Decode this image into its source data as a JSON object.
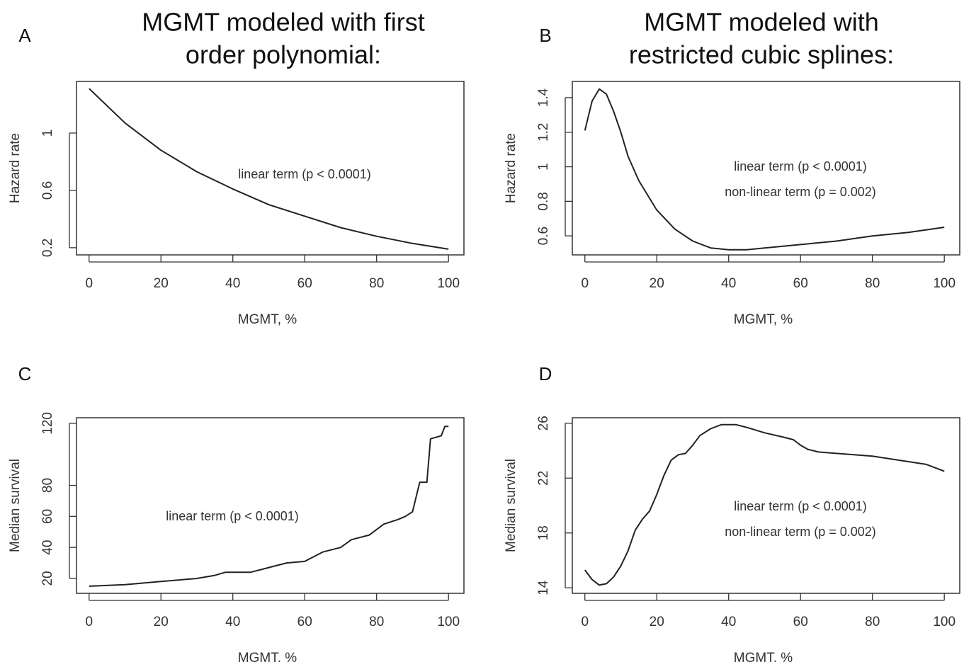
{
  "chart_data": [
    {
      "type": "line",
      "panel": "A",
      "title": [
        "MGMT modeled with first",
        "order polynomial:"
      ],
      "x_label": "MGMT, %",
      "y_label": "Hazard rate",
      "annotations": [
        "linear term (p < 0.0001)"
      ],
      "color": "#222",
      "x": [
        0,
        10,
        20,
        30,
        40,
        50,
        60,
        70,
        80,
        90,
        100
      ],
      "values": [
        1.31,
        1.07,
        0.88,
        0.73,
        0.61,
        0.5,
        0.42,
        0.34,
        0.28,
        0.23,
        0.19
      ],
      "xlim": [
        -3.5,
        104.3
      ],
      "xticks": [
        0,
        20,
        40,
        60,
        80,
        100
      ],
      "ylim": [
        0.15,
        1.36
      ],
      "yticks": [
        0.2,
        0.6,
        1.0
      ]
    },
    {
      "type": "line",
      "panel": "B",
      "title": [
        "MGMT modeled with",
        "restricted cubic splines:"
      ],
      "x_label": "MGMT, %",
      "y_label": "Hazard rate",
      "annotations": [
        "linear term (p < 0.0001)",
        "non-linear term (p = 0.002)"
      ],
      "color": "#222",
      "x": [
        0,
        2,
        4,
        6,
        8,
        10,
        12,
        15,
        20,
        25,
        30,
        35,
        40,
        45,
        50,
        60,
        70,
        80,
        90,
        100
      ],
      "values": [
        1.21,
        1.38,
        1.45,
        1.42,
        1.32,
        1.2,
        1.06,
        0.92,
        0.75,
        0.64,
        0.57,
        0.53,
        0.52,
        0.52,
        0.53,
        0.55,
        0.57,
        0.6,
        0.62,
        0.65
      ],
      "xlim": [
        -3.5,
        104.3
      ],
      "xticks": [
        0,
        20,
        40,
        60,
        80,
        100
      ],
      "ylim": [
        0.49,
        1.494
      ],
      "yticks": [
        0.6,
        0.8,
        1.0,
        1.2,
        1.4
      ]
    },
    {
      "type": "line",
      "panel": "C",
      "x_label": "MGMT, %",
      "y_label": "Median survival",
      "annotations": [
        "linear term (p < 0.0001)"
      ],
      "color": "#222",
      "x": [
        0,
        10,
        20,
        30,
        35,
        38,
        45,
        50,
        55,
        60,
        65,
        70,
        73,
        78,
        82,
        86,
        88,
        90,
        92,
        94,
        95,
        98,
        99,
        100
      ],
      "values": [
        15,
        16,
        18,
        20,
        22,
        24,
        24,
        27,
        30,
        31,
        37,
        40,
        45,
        48,
        55,
        58,
        60,
        63,
        82,
        82,
        110,
        112,
        118,
        118
      ],
      "xlim": [
        -3.5,
        104.3
      ],
      "xticks": [
        0,
        20,
        40,
        60,
        80,
        100
      ],
      "ylim": [
        10.4,
        123.6
      ],
      "yticks": [
        20,
        40,
        60,
        80,
        120
      ]
    },
    {
      "type": "line",
      "panel": "D",
      "x_label": "MGMT, %",
      "y_label": "Median survival",
      "annotations": [
        "linear term (p < 0.0001)",
        "non-linear term (p = 0.002)"
      ],
      "color": "#222",
      "x": [
        0,
        2,
        4,
        6,
        8,
        10,
        12,
        14,
        16,
        18,
        20,
        22,
        24,
        26,
        28,
        30,
        32,
        35,
        38,
        42,
        45,
        50,
        55,
        58,
        60,
        62,
        65,
        70,
        80,
        90,
        95,
        100
      ],
      "values": [
        15.3,
        14.6,
        14.2,
        14.3,
        14.8,
        15.6,
        16.7,
        18.2,
        19.0,
        19.6,
        20.8,
        22.2,
        23.3,
        23.7,
        23.8,
        24.4,
        25.1,
        25.6,
        25.9,
        25.9,
        25.7,
        25.3,
        25.0,
        24.8,
        24.4,
        24.1,
        23.9,
        23.8,
        23.6,
        23.2,
        23.0,
        22.5
      ],
      "xlim": [
        -3.5,
        104.3
      ],
      "xticks": [
        0,
        20,
        40,
        60,
        80,
        100
      ],
      "ylim": [
        13.6,
        26.4
      ],
      "yticks": [
        14,
        18,
        22,
        26
      ]
    }
  ]
}
